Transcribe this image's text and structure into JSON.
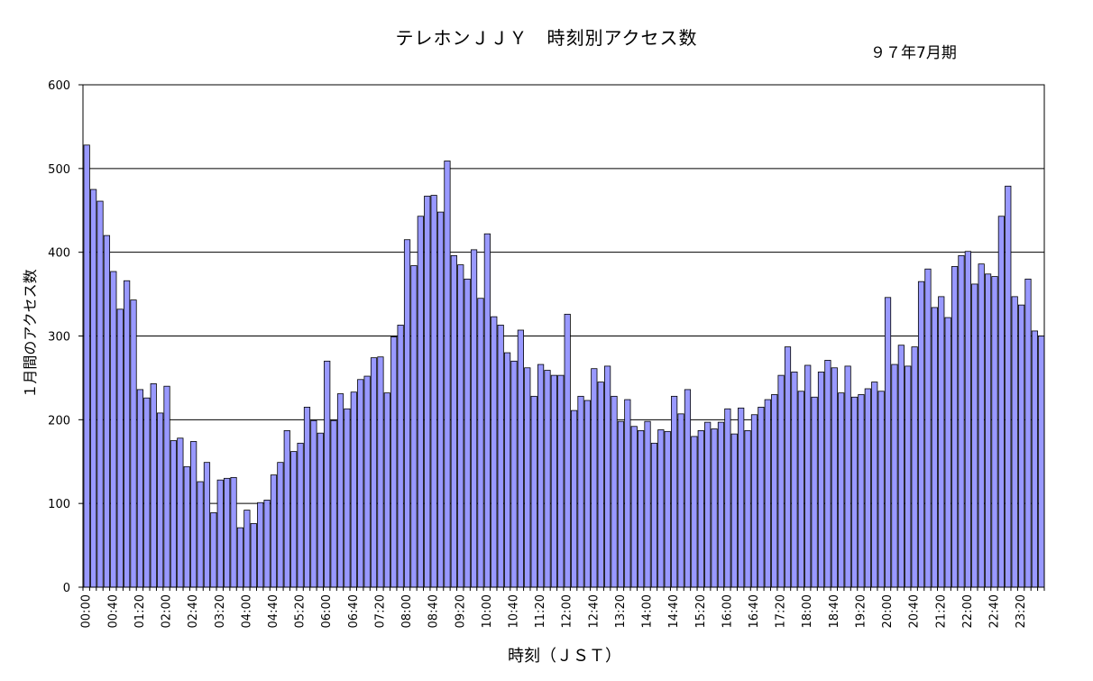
{
  "chart_data": {
    "type": "bar",
    "title": "テレホンＪＪＹ　時刻別アクセス数",
    "subtitle": "９７年7月期",
    "xlabel": "時刻（ＪＳＴ）",
    "ylabel": "１月間のアクセス数",
    "ylim": [
      0,
      600
    ],
    "yticks": [
      0,
      100,
      200,
      300,
      400,
      500,
      600
    ],
    "grid": true,
    "legend": "none",
    "bar_color": "#9999ff",
    "categories": [
      "00:00",
      "00:10",
      "00:20",
      "00:30",
      "00:40",
      "00:50",
      "01:00",
      "01:10",
      "01:20",
      "01:30",
      "01:40",
      "01:50",
      "02:00",
      "02:10",
      "02:20",
      "02:30",
      "02:40",
      "02:50",
      "03:00",
      "03:10",
      "03:20",
      "03:30",
      "03:40",
      "03:50",
      "04:00",
      "04:10",
      "04:20",
      "04:30",
      "04:40",
      "04:50",
      "05:00",
      "05:10",
      "05:20",
      "05:30",
      "05:40",
      "05:50",
      "06:00",
      "06:10",
      "06:20",
      "06:30",
      "06:40",
      "06:50",
      "07:00",
      "07:10",
      "07:20",
      "07:30",
      "07:40",
      "07:50",
      "08:00",
      "08:10",
      "08:20",
      "08:30",
      "08:40",
      "08:50",
      "09:00",
      "09:10",
      "09:20",
      "09:30",
      "09:40",
      "09:50",
      "10:00",
      "10:10",
      "10:20",
      "10:30",
      "10:40",
      "10:50",
      "11:00",
      "11:10",
      "11:20",
      "11:30",
      "11:40",
      "11:50",
      "12:00",
      "12:10",
      "12:20",
      "12:30",
      "12:40",
      "12:50",
      "13:00",
      "13:10",
      "13:20",
      "13:30",
      "13:40",
      "13:50",
      "14:00",
      "14:10",
      "14:20",
      "14:30",
      "14:40",
      "14:50",
      "15:00",
      "15:10",
      "15:20",
      "15:30",
      "15:40",
      "15:50",
      "16:00",
      "16:10",
      "16:20",
      "16:30",
      "16:40",
      "16:50",
      "17:00",
      "17:10",
      "17:20",
      "17:30",
      "17:40",
      "17:50",
      "18:00",
      "18:10",
      "18:20",
      "18:30",
      "18:40",
      "18:50",
      "19:00",
      "19:10",
      "19:20",
      "19:30",
      "19:40",
      "19:50",
      "20:00",
      "20:10",
      "20:20",
      "20:30",
      "20:40",
      "20:50",
      "21:00",
      "21:10",
      "21:20",
      "21:30",
      "21:40",
      "21:50",
      "22:00",
      "22:10",
      "22:20",
      "22:30",
      "22:40",
      "22:50",
      "23:00",
      "23:10",
      "23:20",
      "23:30",
      "23:40",
      "23:50"
    ],
    "xticklabels": [
      "00:00",
      "00:40",
      "01:20",
      "02:00",
      "02:40",
      "03:20",
      "04:00",
      "04:40",
      "05:20",
      "06:00",
      "06:40",
      "07:20",
      "08:00",
      "08:40",
      "09:20",
      "10:00",
      "10:40",
      "11:20",
      "12:00",
      "12:40",
      "13:20",
      "14:00",
      "14:40",
      "15:20",
      "16:00",
      "16:40",
      "17:20",
      "18:00",
      "18:40",
      "19:20",
      "20:00",
      "20:40",
      "21:20",
      "22:00",
      "22:40",
      "23:20"
    ],
    "values": [
      528,
      475,
      461,
      420,
      377,
      332,
      366,
      343,
      236,
      226,
      243,
      208,
      240,
      175,
      178,
      144,
      174,
      126,
      149,
      89,
      128,
      130,
      131,
      71,
      92,
      76,
      101,
      104,
      134,
      149,
      187,
      162,
      172,
      215,
      199,
      184,
      270,
      199,
      231,
      213,
      233,
      248,
      252,
      274,
      275,
      232,
      299,
      313,
      415,
      384,
      443,
      467,
      468,
      448,
      509,
      396,
      385,
      368,
      403,
      345,
      422,
      323,
      313,
      280,
      270,
      307,
      262,
      228,
      266,
      259,
      253,
      253,
      326,
      211,
      228,
      223,
      261,
      245,
      264,
      228,
      198,
      224,
      192,
      187,
      198,
      172,
      188,
      186,
      228,
      207,
      236,
      180,
      187,
      197,
      189,
      197,
      213,
      183,
      214,
      187,
      206,
      215,
      224,
      230,
      253,
      287,
      257,
      234,
      265,
      227,
      257,
      271,
      262,
      232,
      264,
      227,
      230,
      237,
      245,
      234,
      346,
      266,
      289,
      264,
      287,
      365,
      380,
      334,
      347,
      322,
      383,
      396,
      401,
      362,
      386,
      374,
      371,
      443,
      479,
      347,
      337,
      368,
      306,
      300
    ]
  }
}
